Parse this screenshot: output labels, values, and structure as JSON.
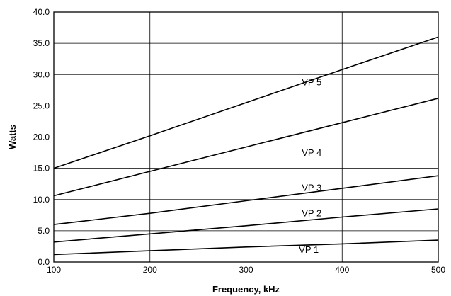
{
  "chart_data": {
    "type": "line",
    "title": "",
    "xlabel": "Frequency, kHz",
    "ylabel": "Watts",
    "xlim": [
      100,
      500
    ],
    "ylim": [
      0,
      40
    ],
    "grid": true,
    "x_ticks": [
      100,
      200,
      300,
      400,
      500
    ],
    "x_tick_labels": [
      "100",
      "200",
      "300",
      "400",
      "500"
    ],
    "y_ticks": [
      0,
      5,
      10,
      15,
      20,
      25,
      30,
      35,
      40
    ],
    "y_tick_labels": [
      "0.0",
      "5.0",
      "10.0",
      "15.0",
      "20.0",
      "25.0",
      "30.0",
      "35.0",
      "40.0"
    ],
    "series": [
      {
        "name": "VP 1",
        "x": [
          100,
          200,
          300,
          400,
          500
        ],
        "y": [
          1.2,
          1.8,
          2.4,
          2.9,
          3.5
        ],
        "label_at": [
          355,
          1.5
        ]
      },
      {
        "name": "VP 2",
        "x": [
          100,
          200,
          300,
          400,
          500
        ],
        "y": [
          3.2,
          4.5,
          5.8,
          7.2,
          8.5
        ],
        "label_at": [
          358,
          7.3
        ]
      },
      {
        "name": "VP 3",
        "x": [
          100,
          200,
          300,
          400,
          500
        ],
        "y": [
          6.0,
          7.8,
          9.8,
          11.8,
          13.8
        ],
        "label_at": [
          358,
          11.4
        ]
      },
      {
        "name": "VP 4",
        "x": [
          100,
          200,
          300,
          400,
          500
        ],
        "y": [
          10.6,
          14.5,
          18.4,
          22.3,
          26.2
        ],
        "label_at": [
          358,
          17.0
        ]
      },
      {
        "name": "VP 5",
        "x": [
          100,
          200,
          300,
          400,
          500
        ],
        "y": [
          15.0,
          20.2,
          25.5,
          30.8,
          36.0
        ],
        "label_at": [
          358,
          28.3
        ]
      }
    ]
  }
}
